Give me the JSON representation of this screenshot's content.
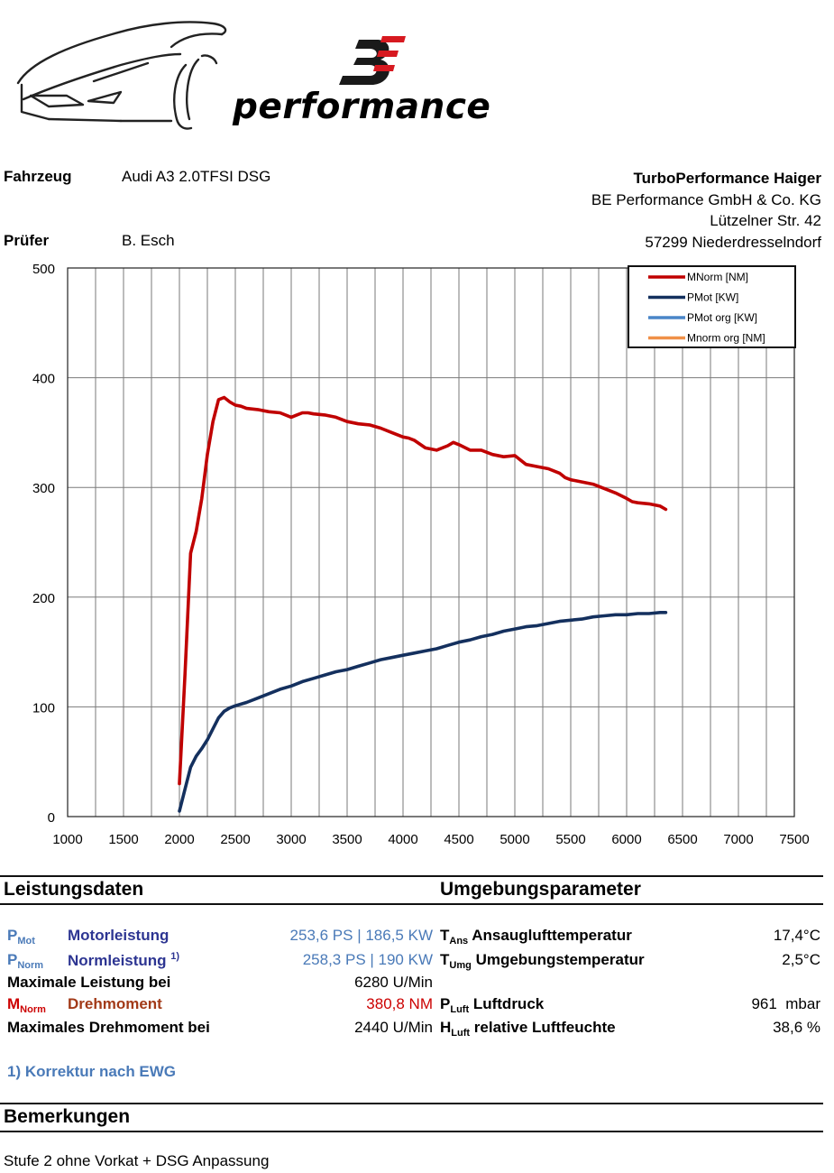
{
  "brand": {
    "logo_text": "performance",
    "mark": "BE"
  },
  "header": {
    "vehicle_label": "Fahrzeug",
    "vehicle_value": "Audi A3 2.0TFSI DSG",
    "tester_label": "Prüfer",
    "tester_value": "B. Esch",
    "company": [
      "TurboPerformance Haiger",
      "BE Performance GmbH & Co. KG",
      "Lützelner Str. 42",
      "57299 Niederdresselndorf"
    ]
  },
  "chart_data": {
    "type": "line",
    "xlim": [
      1000,
      7500
    ],
    "ylim": [
      0,
      500
    ],
    "xticks": [
      1000,
      1500,
      2000,
      2500,
      3000,
      3500,
      4000,
      4500,
      5000,
      5500,
      6000,
      6500,
      7000,
      7500
    ],
    "yticks": [
      0,
      100,
      200,
      300,
      400,
      500
    ],
    "grid": true,
    "legend_position": "top-right",
    "legend": [
      {
        "name": "MNorm [NM]",
        "color": "#c00000"
      },
      {
        "name": "PMot [KW]",
        "color": "#14305e"
      },
      {
        "name": "PMot org [KW]",
        "color": "#4a86c8"
      },
      {
        "name": "Mnorm org [NM]",
        "color": "#f09048"
      }
    ],
    "series": [
      {
        "name": "MNorm [NM]",
        "color": "#c00000",
        "x": [
          2000,
          2050,
          2100,
          2150,
          2200,
          2250,
          2300,
          2350,
          2400,
          2450,
          2500,
          2550,
          2600,
          2700,
          2800,
          2900,
          3000,
          3050,
          3100,
          3150,
          3200,
          3300,
          3400,
          3500,
          3600,
          3700,
          3800,
          3900,
          4000,
          4050,
          4100,
          4200,
          4300,
          4400,
          4450,
          4500,
          4600,
          4700,
          4800,
          4900,
          5000,
          5050,
          5100,
          5200,
          5300,
          5400,
          5450,
          5500,
          5600,
          5700,
          5800,
          5900,
          6000,
          6050,
          6100,
          6200,
          6300,
          6350
        ],
        "y": [
          30,
          130,
          240,
          260,
          290,
          330,
          360,
          380,
          382,
          378,
          375,
          374,
          372,
          371,
          369,
          368,
          364,
          366,
          368,
          368,
          367,
          366,
          364,
          360,
          358,
          357,
          354,
          350,
          346,
          345,
          343,
          336,
          334,
          338,
          341,
          339,
          334,
          334,
          330,
          328,
          329,
          325,
          321,
          319,
          317,
          313,
          309,
          307,
          305,
          303,
          299,
          295,
          290,
          287,
          286,
          285,
          283,
          280
        ]
      },
      {
        "name": "PMot [KW]",
        "color": "#14305e",
        "x": [
          2000,
          2050,
          2100,
          2150,
          2200,
          2250,
          2300,
          2350,
          2400,
          2450,
          2500,
          2600,
          2700,
          2800,
          2900,
          3000,
          3100,
          3200,
          3300,
          3400,
          3500,
          3600,
          3700,
          3800,
          3900,
          4000,
          4100,
          4200,
          4300,
          4400,
          4500,
          4600,
          4700,
          4800,
          4900,
          5000,
          5100,
          5200,
          5300,
          5400,
          5500,
          5600,
          5700,
          5800,
          5900,
          6000,
          6100,
          6200,
          6300,
          6350
        ],
        "y": [
          5,
          25,
          45,
          55,
          62,
          70,
          80,
          90,
          96,
          99,
          101,
          104,
          108,
          112,
          116,
          119,
          123,
          126,
          129,
          132,
          134,
          137,
          140,
          143,
          145,
          147,
          149,
          151,
          153,
          156,
          159,
          161,
          164,
          166,
          169,
          171,
          173,
          174,
          176,
          178,
          179,
          180,
          182,
          183,
          184,
          184,
          185,
          185,
          186,
          186
        ]
      }
    ]
  },
  "leistungsdaten": {
    "title": "Leistungsdaten",
    "pmot_symbol": "P",
    "pmot_sub": "Mot",
    "pmot_label": "Motorleistung",
    "pmot_value": "253,6 PS | 186,5 KW",
    "pnorm_symbol": "P",
    "pnorm_sub": "Norm",
    "pnorm_label": "Normleistung",
    "pnorm_sup": "1)",
    "pnorm_value": "258,3 PS | 190 KW",
    "maxpower_label": "Maximale Leistung bei",
    "maxpower_value": "6280 U/Min",
    "mnorm_symbol": "M",
    "mnorm_sub": "Norm",
    "mnorm_label": "Drehmoment",
    "mnorm_value": "380,8 NM",
    "maxtorque_label": "Maximales Drehmoment bei",
    "maxtorque_value": "2440 U/Min",
    "footnote": "1) Korrektur nach EWG"
  },
  "umgebung": {
    "title": "Umgebungsparameter",
    "tans_symbol": "T",
    "tans_sub": "Ans",
    "tans_label": "Ansauglufttemperatur",
    "tans_value": "17,4°C",
    "tumg_symbol": "T",
    "tumg_sub": "Umg",
    "tumg_label": "Umgebungstemperatur",
    "tumg_value": "2,5°C",
    "pluft_symbol": "P",
    "pluft_sub": "Luft",
    "pluft_label": "Luftdruck",
    "pluft_value": "961",
    "pluft_unit": "mbar",
    "hluft_symbol": "H",
    "hluft_sub": "Luft",
    "hluft_label": "relative Luftfeuchte",
    "hluft_value": "38,6 %"
  },
  "bemerkungen": {
    "title": "Bemerkungen",
    "text": "Stufe 2 ohne Vorkat + DSG Anpassung"
  }
}
